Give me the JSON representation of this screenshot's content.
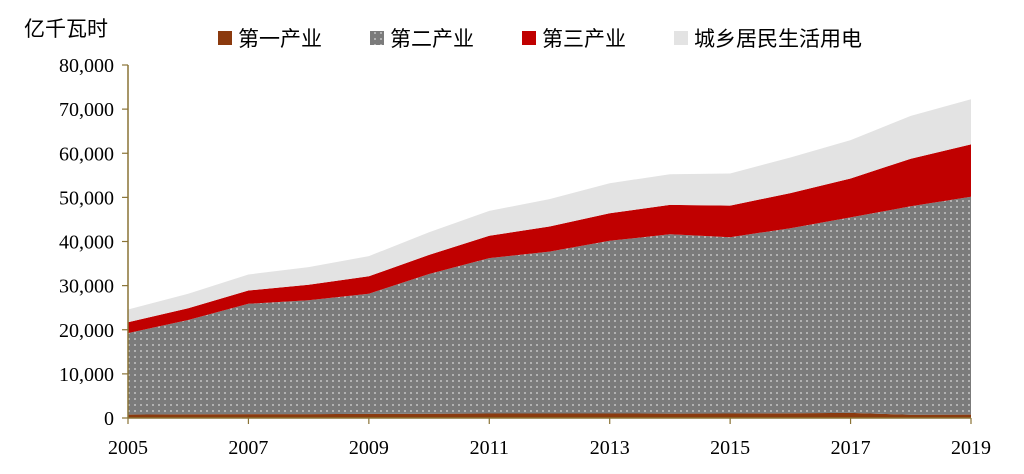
{
  "chart_data": {
    "type": "area",
    "stacked": true,
    "y_unit_label": "亿千瓦时",
    "x": [
      2005,
      2006,
      2007,
      2008,
      2009,
      2010,
      2011,
      2012,
      2013,
      2014,
      2015,
      2016,
      2017,
      2018,
      2019
    ],
    "x_tick_labels": [
      "2005",
      "2007",
      "2009",
      "2011",
      "2013",
      "2015",
      "2017",
      "2019"
    ],
    "x_ticks": [
      2005,
      2007,
      2009,
      2011,
      2013,
      2015,
      2017,
      2019
    ],
    "ylim": [
      0,
      80000
    ],
    "y_ticks": [
      0,
      10000,
      20000,
      30000,
      40000,
      50000,
      60000,
      70000,
      80000
    ],
    "y_tick_labels": [
      "0",
      "10,000",
      "20,000",
      "30,000",
      "40,000",
      "50,000",
      "60,000",
      "70,000",
      "80,000"
    ],
    "legend_position": "top",
    "grid": false,
    "series": [
      {
        "name": "第一产业",
        "color": "#8B3A0E",
        "values": [
          760,
          830,
          880,
          890,
          940,
          980,
          1010,
          1010,
          1010,
          990,
          1020,
          1080,
          1160,
          730,
          780
        ]
      },
      {
        "name": "第二产业",
        "color": "#7b7b7b",
        "pattern": "dotted",
        "values": [
          18480,
          21370,
          25000,
          25800,
          27230,
          31660,
          35220,
          36690,
          39140,
          40650,
          39960,
          41930,
          44310,
          47240,
          49360
        ]
      },
      {
        "name": "第三产业",
        "color": "#C00000",
        "values": [
          2460,
          2690,
          3020,
          3500,
          3940,
          4330,
          5070,
          5690,
          6270,
          6660,
          7160,
          7960,
          8810,
          10800,
          11860
        ]
      },
      {
        "name": "城乡居民生活用电",
        "color": "#E3E3E3",
        "values": [
          2890,
          3250,
          3630,
          4000,
          4570,
          5120,
          5640,
          6220,
          6790,
          6930,
          7280,
          8070,
          8700,
          9690,
          10250
        ]
      }
    ]
  }
}
